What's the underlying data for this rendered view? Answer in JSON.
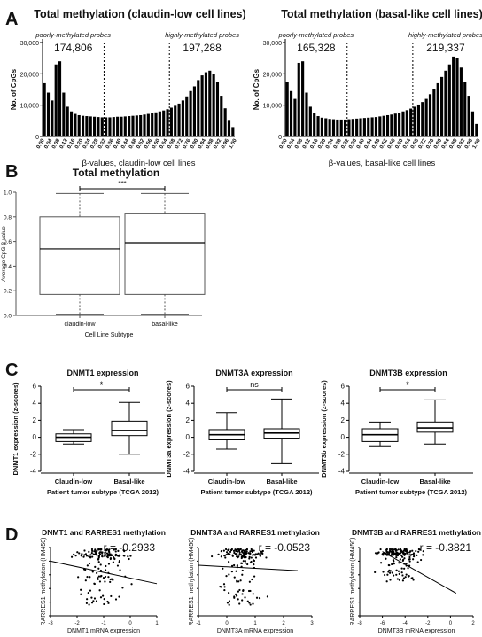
{
  "panel_letters": [
    "A",
    "B",
    "C",
    "D"
  ],
  "colors": {
    "bar": "#000000",
    "line": "#000000",
    "text": "#111111",
    "box_b_line": "#555555"
  },
  "chart_data": [
    {
      "id": "A1",
      "type": "bar",
      "title": "Total methylation (claudin-low cell lines)",
      "xlabel": "β-values, claudin-low cell lines",
      "ylabel": "No. of CpGs",
      "ylim": [
        0,
        30000
      ],
      "yticks": [
        "0",
        "10,000",
        "20,000",
        "30,000"
      ],
      "xticklabels": [
        "0.00",
        "0.04",
        "0.08",
        "0.12",
        "0.16",
        "0.20",
        "0.24",
        "0.28",
        "0.32",
        "0.36",
        "0.40",
        "0.44",
        "0.48",
        "0.52",
        "0.56",
        "0.60",
        "0.64",
        "0.68",
        "0.72",
        "0.76",
        "0.80",
        "0.84",
        "0.88",
        "0.92",
        "0.96",
        "1.00"
      ],
      "annotations": [
        "poorly-methylated probes",
        "highly-methylated probes",
        "174,806",
        "197,288"
      ],
      "values": [
        17000,
        14000,
        11500,
        23000,
        24000,
        14000,
        9500,
        8000,
        7200,
        6800,
        6600,
        6500,
        6400,
        6300,
        6200,
        6100,
        6100,
        6100,
        6200,
        6300,
        6300,
        6400,
        6500,
        6600,
        6700,
        6800,
        7000,
        7200,
        7400,
        7700,
        8000,
        8300,
        8700,
        9200,
        9800,
        10500,
        11500,
        12800,
        14500,
        16000,
        18000,
        19500,
        20500,
        21000,
        20000,
        17500,
        13000,
        9000,
        5000,
        3000
      ]
    },
    {
      "id": "A2",
      "type": "bar",
      "title": "Total methylation (basal-like cell lines)",
      "xlabel": "β-values, basal-like cell lines",
      "ylabel": "No. of CpGs",
      "ylim": [
        0,
        30000
      ],
      "yticks": [
        "0",
        "10,000",
        "20,000",
        "30,000"
      ],
      "xticklabels": [
        "0.00",
        "0.04",
        "0.08",
        "0.12",
        "0.16",
        "0.20",
        "0.24",
        "0.28",
        "0.32",
        "0.36",
        "0.40",
        "0.44",
        "0.48",
        "0.52",
        "0.56",
        "0.60",
        "0.64",
        "0.68",
        "0.72",
        "0.76",
        "0.80",
        "0.84",
        "0.88",
        "0.92",
        "0.96",
        "1.00"
      ],
      "annotations": [
        "poorly-methylated probes",
        "highly-methylated probes",
        "165,328",
        "219,337"
      ],
      "values": [
        17500,
        14500,
        12000,
        23500,
        24000,
        14000,
        9500,
        7500,
        6500,
        6000,
        5800,
        5600,
        5500,
        5400,
        5400,
        5400,
        5500,
        5600,
        5700,
        5800,
        5900,
        6000,
        6100,
        6200,
        6400,
        6600,
        6800,
        7000,
        7300,
        7600,
        8000,
        8400,
        8900,
        9500,
        10200,
        11000,
        12000,
        13500,
        15000,
        17000,
        19000,
        21000,
        23000,
        25500,
        25000,
        22000,
        17500,
        13000,
        8000,
        4000
      ]
    },
    {
      "id": "B",
      "type": "box",
      "title": "Total methylation",
      "xlabel": "Cell Line Subtype",
      "ylabel": "Average CpG β-value",
      "ylim": [
        0,
        1
      ],
      "yticks": [
        "0.0",
        "0.2",
        "0.4",
        "0.6",
        "0.8",
        "1.0"
      ],
      "categories": [
        "claudin-low",
        "basal-like"
      ],
      "boxes": [
        {
          "min": 0.01,
          "q1": 0.17,
          "median": 0.54,
          "q3": 0.8,
          "max": 0.99
        },
        {
          "min": 0.01,
          "q1": 0.17,
          "median": 0.59,
          "q3": 0.83,
          "max": 0.99
        }
      ],
      "significance": "***"
    },
    {
      "id": "C1",
      "type": "box",
      "title": "DNMT1 expression",
      "xlabel": "Patient tumor subtype (TCGA 2012)",
      "ylabel": "DNMT1 expression (z-scores)",
      "ylim": [
        -4,
        6
      ],
      "yticks": [
        "-4",
        "-2",
        "0",
        "2",
        "4",
        "6"
      ],
      "categories": [
        "Claudin-low",
        "Basal-like"
      ],
      "boxes": [
        {
          "min": -0.8,
          "q1": -0.5,
          "median": 0.0,
          "q3": 0.4,
          "max": 0.9
        },
        {
          "min": -2.0,
          "q1": 0.2,
          "median": 0.8,
          "q3": 1.9,
          "max": 4.1
        }
      ],
      "significance": "*"
    },
    {
      "id": "C2",
      "type": "box",
      "title": "DNMT3A expression",
      "xlabel": "Patient tumor subtype (TCGA 2012)",
      "ylabel": "DNMT3a expression (z-scores)",
      "ylim": [
        -4,
        6
      ],
      "yticks": [
        "-4",
        "-2",
        "0",
        "2",
        "4",
        "6"
      ],
      "categories": [
        "Claudin-low",
        "Basal-like"
      ],
      "boxes": [
        {
          "min": -1.4,
          "q1": -0.3,
          "median": 0.3,
          "q3": 0.9,
          "max": 2.9
        },
        {
          "min": -3.1,
          "q1": -0.1,
          "median": 0.5,
          "q3": 1.0,
          "max": 4.5
        }
      ],
      "significance": "ns"
    },
    {
      "id": "C3",
      "type": "box",
      "title": "DNMT3B expression",
      "xlabel": "Patient tumor subtype (TCGA 2012)",
      "ylabel": "DNMT3b expression (z-scores)",
      "ylim": [
        -4,
        6
      ],
      "yticks": [
        "-4",
        "-2",
        "0",
        "2",
        "4",
        "6"
      ],
      "categories": [
        "Claudin-low",
        "Basal-like"
      ],
      "boxes": [
        {
          "min": -1.0,
          "q1": -0.5,
          "median": 0.3,
          "q3": 1.0,
          "max": 1.8
        },
        {
          "min": -0.8,
          "q1": 0.6,
          "median": 1.1,
          "q3": 1.8,
          "max": 4.4
        }
      ],
      "significance": "*"
    },
    {
      "id": "D1",
      "type": "scatter",
      "title": "DNMT1 and RARRES1 methylation",
      "xlabel": "DNMT1 mRNA expression",
      "ylabel": "RARRES1 methylation (HM450)",
      "xlim": [
        -3,
        1
      ],
      "ylim": [
        0,
        1
      ],
      "xticks": [
        "-3",
        "-2",
        "-1",
        "0",
        "1"
      ],
      "yticks": [
        "0.0",
        "0.2",
        "0.4",
        "0.6",
        "0.8",
        "1.0"
      ],
      "annotation": "r = -0.2933",
      "fit": {
        "x": [
          -3,
          1
        ],
        "y": [
          0.8,
          0.47
        ]
      }
    },
    {
      "id": "D2",
      "type": "scatter",
      "title": "DNMT3A and RARRES1 methylation",
      "xlabel": "DNMT3A mRNA expression",
      "ylabel": "RARRES1 methylation (HM450)",
      "xlim": [
        -1,
        3
      ],
      "ylim": [
        0,
        1
      ],
      "xticks": [
        "-1",
        "0",
        "1",
        "2",
        "3"
      ],
      "yticks": [
        "0.0",
        "0.2",
        "0.4",
        "0.6",
        "0.8",
        "1.0"
      ],
      "annotation": "r = -0.0523",
      "fit": {
        "x": [
          -1,
          2.5
        ],
        "y": [
          0.74,
          0.66
        ]
      }
    },
    {
      "id": "D3",
      "type": "scatter",
      "title": "DNMT3B and RARRES1 methylation",
      "xlabel": "DNMT3B mRNA expression",
      "ylabel": "RARRES1 methylation (HM450)",
      "xlim": [
        -8,
        2
      ],
      "ylim": [
        0,
        1
      ],
      "xticks": [
        "-8",
        "-6",
        "-4",
        "-2",
        "0",
        "2"
      ],
      "yticks": [
        "0.0",
        "0.2",
        "0.4",
        "0.6",
        "0.8",
        "1.0"
      ],
      "annotation": "r = -0.3821",
      "fit": {
        "x": [
          -6,
          0.5
        ],
        "y": [
          0.94,
          0.33
        ]
      }
    }
  ]
}
